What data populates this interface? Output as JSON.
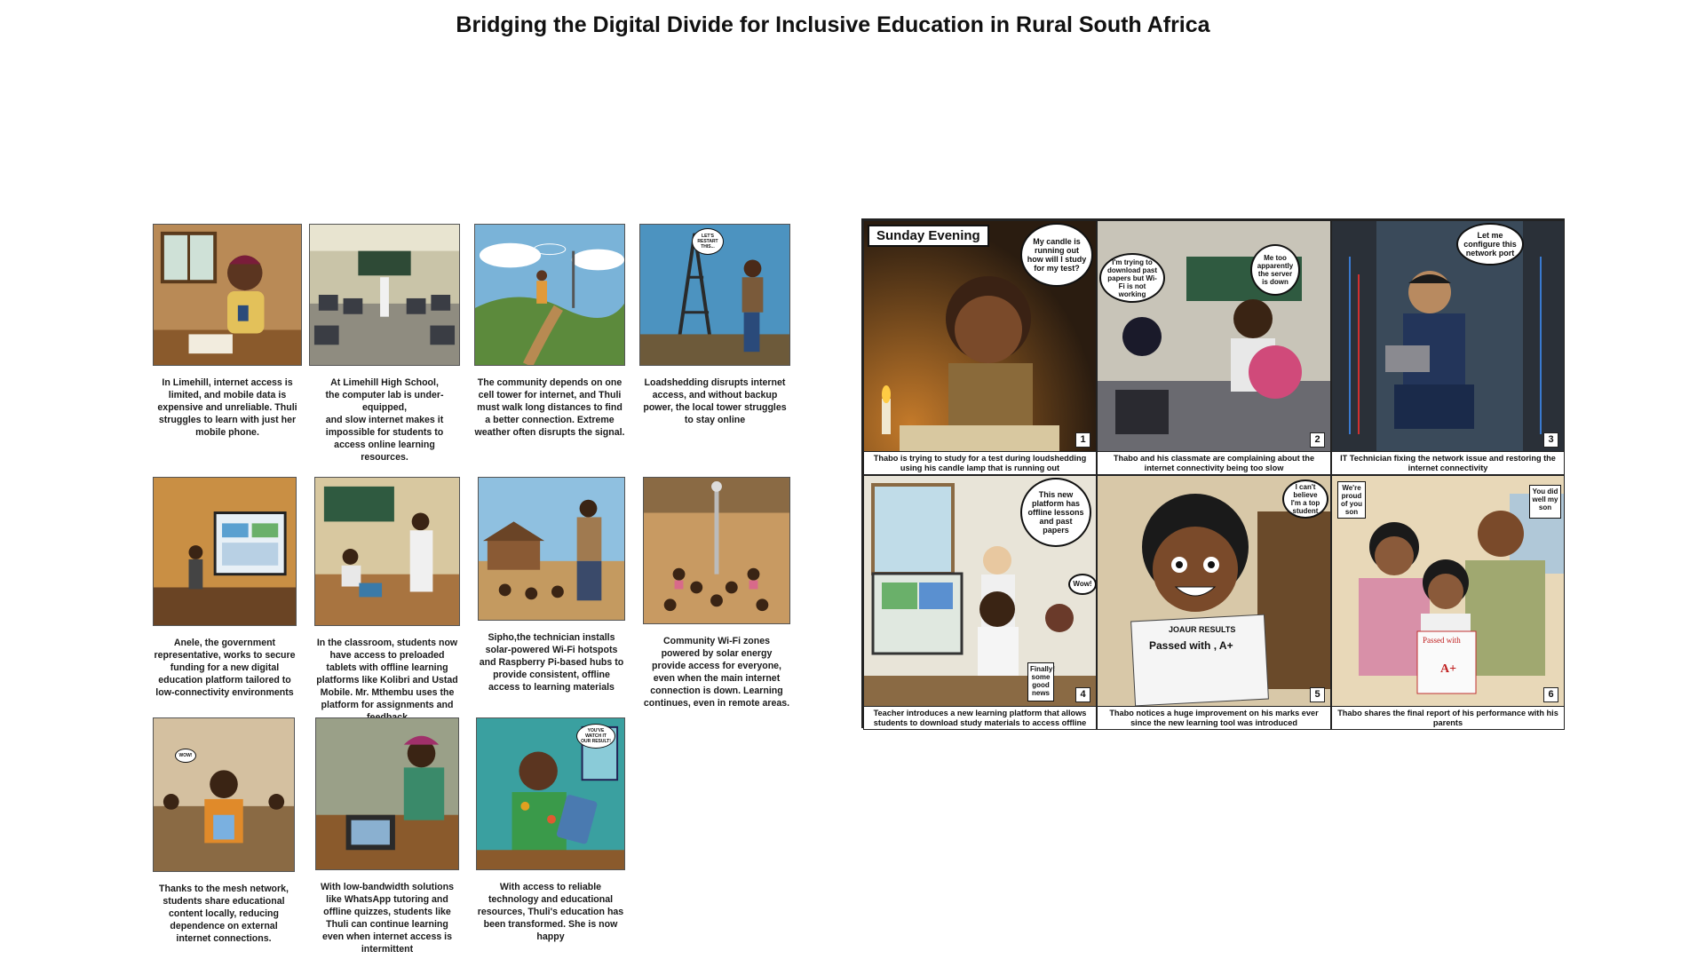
{
  "title": "Bridging the Digital Divide for Inclusive Education in Rural South Africa",
  "storyboard": [
    {
      "caption": "In Limehill, internet access is limited, and mobile data is expensive and unreliable. Thuli struggles to learn with just her mobile phone."
    },
    {
      "caption": "At Limehill High School,\nthe computer lab is under-equipped,\nand slow internet makes it impossible for students to access online learning resources."
    },
    {
      "caption": "The community depends on one cell tower for internet, and Thuli must walk long distances to find a better connection. Extreme weather often disrupts the signal."
    },
    {
      "caption": "Loadshedding disrupts internet access, and without backup power, the local tower struggles to stay online",
      "bubble": "LET'S RESTART THIS..."
    },
    {
      "caption": "Anele, the government representative, works to secure funding for a new digital education platform tailored to low-connectivity environments"
    },
    {
      "caption": "In the classroom, students now have access to preloaded tablets with offline learning platforms like Kolibri and Ustad Mobile. Mr. Mthembu uses the platform for assignments and feedback"
    },
    {
      "caption": "Sipho,the technician  installs solar-powered Wi-Fi hotspots and Raspberry Pi-based hubs to provide consistent, offline access to learning materials"
    },
    {
      "caption": "Community Wi-Fi zones powered by solar energy provide access for everyone, even when the main internet connection is down. Learning continues, even in remote areas."
    },
    {
      "caption": "Thanks to the mesh network, students share educational content locally, reducing dependence on external internet connections.",
      "bubble": "WOW!"
    },
    {
      "caption": "With low-bandwidth solutions like WhatsApp tutoring and offline quizzes, students like Thuli can continue learning even when internet access is intermittent"
    },
    {
      "caption": "With access to reliable technology and educational resources, Thuli's education has been transformed. She is now happy",
      "bubble": "YOU'VE WATCH IT OUR RESULT!"
    }
  ],
  "comic": {
    "header": "Sunday Evening",
    "panels": [
      {
        "number": "1",
        "caption": "Thabo is trying to study for a test during loudshedding using his candle lamp that is running out",
        "bubbles": [
          "My candle is running out how will I study for my test?"
        ]
      },
      {
        "number": "2",
        "caption": "Thabo and his classmate are complaining about the internet connectivity being too slow",
        "bubbles": [
          "I'm trying to download past papers  but Wi-Fi is not working",
          "Me too apparently the server is down"
        ]
      },
      {
        "number": "3",
        "caption": "IT Technician fixing the network issue and restoring the internet connectivity",
        "bubbles": [
          "Let me configure this network port"
        ]
      },
      {
        "number": "4",
        "caption": "Teacher introduces a new learning platform that allows students to download study materials to access offline",
        "bubbles": [
          "This new platform has offline lessons and past papers",
          "Wow!",
          "Finally! some good news"
        ]
      },
      {
        "number": "5",
        "caption": "Thabo notices a huge improvement on his marks ever since the new learning tool was introduced",
        "bubbles": [
          "I can't believe I'm a top student"
        ],
        "paper_title": "JOAUR RESULTS",
        "paper_text": "Passed with , A+"
      },
      {
        "number": "6",
        "caption": "Thabo shares the final report of his performance with his parents",
        "bubbles": [
          "We're proud of you son",
          "You did well my son"
        ],
        "paper_text": "Passed with",
        "paper_grade": "A+"
      }
    ]
  }
}
